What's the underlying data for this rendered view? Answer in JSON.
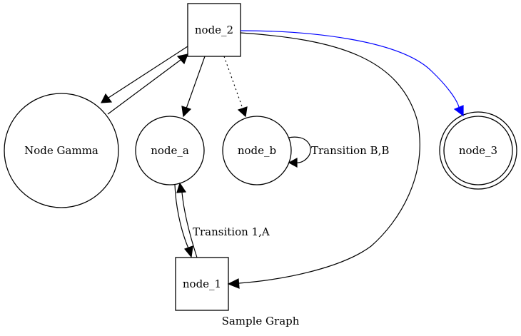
{
  "caption": "Sample Graph",
  "colors": {
    "default_edge": "#000000",
    "highlight_edge": "#0000ff"
  },
  "nodes": [
    {
      "id": "node_2",
      "label": "node_2",
      "shape": "square"
    },
    {
      "id": "gamma",
      "label": "Node Gamma",
      "shape": "circle"
    },
    {
      "id": "node_a",
      "label": "node_a",
      "shape": "circle"
    },
    {
      "id": "node_b",
      "label": "node_b",
      "shape": "circle"
    },
    {
      "id": "node_3",
      "label": "node_3",
      "shape": "doublecircle"
    },
    {
      "id": "node_1",
      "label": "node_1",
      "shape": "square"
    }
  ],
  "edges": [
    {
      "from": "node_2",
      "to": "gamma",
      "style": "solid",
      "color": "#000000"
    },
    {
      "from": "gamma",
      "to": "node_2",
      "style": "solid",
      "color": "#000000"
    },
    {
      "from": "node_2",
      "to": "node_a",
      "style": "solid",
      "color": "#000000"
    },
    {
      "from": "node_2",
      "to": "node_b",
      "style": "dotted",
      "color": "#000000"
    },
    {
      "from": "node_2",
      "to": "node_3",
      "style": "solid",
      "color": "#0000ff"
    },
    {
      "from": "node_2",
      "to": "node_1",
      "style": "solid",
      "color": "#000000"
    },
    {
      "from": "node_b",
      "to": "node_b",
      "style": "solid",
      "color": "#000000",
      "label": "Transition B,B"
    },
    {
      "from": "node_a",
      "to": "node_1",
      "style": "solid",
      "color": "#000000",
      "label": "Transition 1,A"
    },
    {
      "from": "node_1",
      "to": "node_a",
      "style": "solid",
      "color": "#000000"
    }
  ]
}
